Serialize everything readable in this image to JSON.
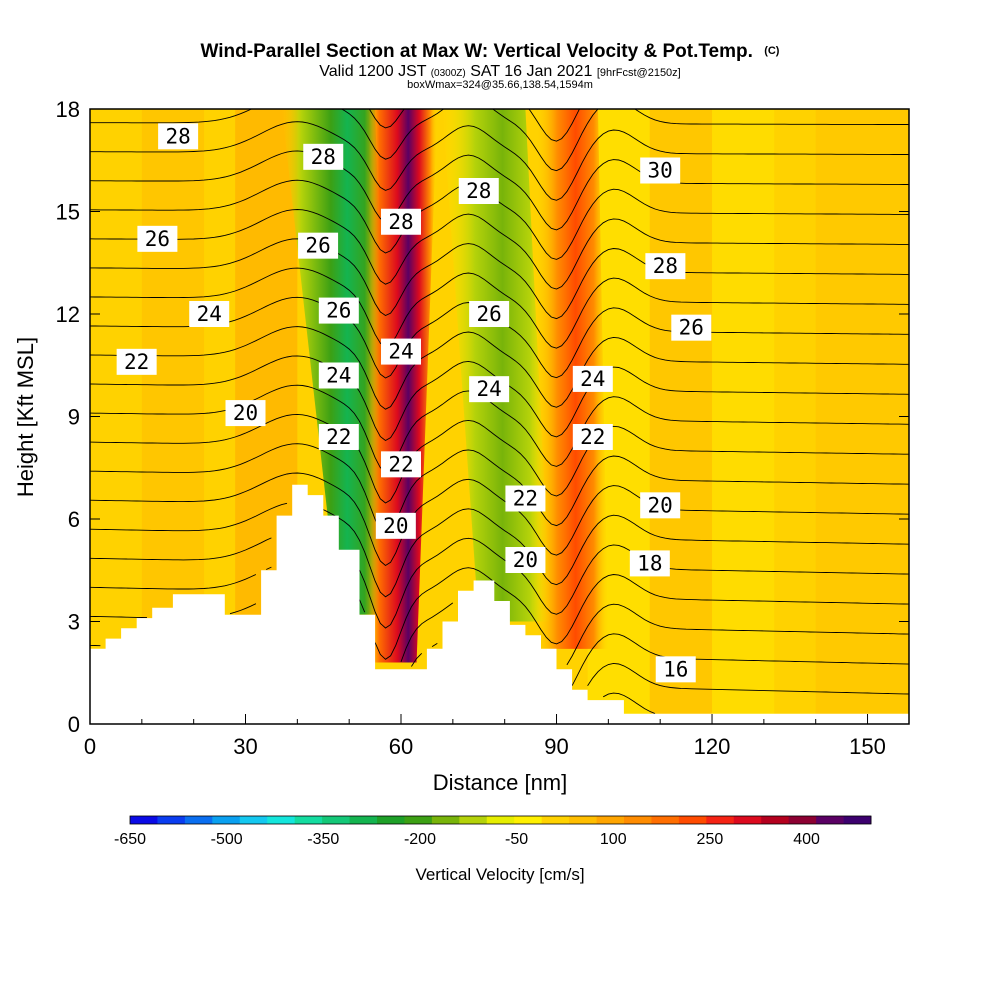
{
  "title": {
    "main": "Wind-Parallel Section at Max W: Vertical Velocity & Pot.Temp.",
    "copyright": "(C)",
    "valid_prefix": "Valid 1200 JST",
    "valid_utc": "(0300Z)",
    "valid_date": "SAT 16 Jan 2021",
    "forecast": "[9hrFcst@2150z]",
    "box": "boxWmax=324@35.66,138.54,1594m"
  },
  "chart_data": {
    "type": "heatmap",
    "xlabel": "Distance [nm]",
    "ylabel": "Height [Kft MSL]",
    "xlim": [
      0,
      158
    ],
    "ylim": [
      0,
      18
    ],
    "xticks": [
      "0",
      "30",
      "60",
      "90",
      "120",
      "150"
    ],
    "xtick_values": [
      0,
      30,
      60,
      90,
      120,
      150
    ],
    "yticks": [
      "0",
      "3",
      "6",
      "9",
      "12",
      "15",
      "18"
    ],
    "ytick_values": [
      0,
      3,
      6,
      9,
      12,
      15,
      18
    ],
    "fill_variable": "Vertical Velocity [cm/s]",
    "contour_variable": "Potential Temperature",
    "colorbar": {
      "label": "Vertical Velocity [cm/s]",
      "tick_labels": [
        "-650",
        "-500",
        "-350",
        "-200",
        "-50",
        "100",
        "250",
        "400"
      ],
      "min": -650,
      "max": 500,
      "step": 50,
      "colors": [
        "#0a0ae6",
        "#0a3cf0",
        "#0a6ef0",
        "#0aa0f0",
        "#14c8f0",
        "#14e6dc",
        "#14dca0",
        "#14c878",
        "#14b450",
        "#1ea028",
        "#3ca014",
        "#78b40a",
        "#b4d20a",
        "#e6ee00",
        "#fff000",
        "#ffd200",
        "#ffbe00",
        "#ffa500",
        "#ff8c00",
        "#ff6e00",
        "#ff4b00",
        "#f52314",
        "#dc0a1e",
        "#b4001e",
        "#8c0032",
        "#5a0064",
        "#3c006e"
      ]
    },
    "velocity_bands": [
      {
        "kind": "downdraft",
        "x": [
          40,
          54
        ],
        "min_cm_s": -230,
        "description_level": "strong"
      },
      {
        "kind": "updraft",
        "x": [
          55,
          66
        ],
        "max_cm_s": 400
      },
      {
        "kind": "downdraft",
        "x": [
          67,
          82
        ],
        "min_cm_s": -120
      },
      {
        "kind": "updraft",
        "x": [
          86,
          96
        ],
        "max_cm_s": 200
      }
    ],
    "terrain": [
      [
        0,
        2.2
      ],
      [
        3,
        2.2
      ],
      [
        3,
        2.5
      ],
      [
        6,
        2.5
      ],
      [
        6,
        2.8
      ],
      [
        9,
        2.8
      ],
      [
        9,
        3.1
      ],
      [
        12,
        3.1
      ],
      [
        12,
        3.4
      ],
      [
        16,
        3.4
      ],
      [
        16,
        3.8
      ],
      [
        26,
        3.8
      ],
      [
        26,
        3.2
      ],
      [
        33,
        3.2
      ],
      [
        33,
        4.5
      ],
      [
        36,
        4.5
      ],
      [
        36,
        6.1
      ],
      [
        39,
        6.1
      ],
      [
        39,
        7.0
      ],
      [
        42,
        7.0
      ],
      [
        42,
        6.7
      ],
      [
        45,
        6.7
      ],
      [
        45,
        6.1
      ],
      [
        48,
        6.1
      ],
      [
        48,
        5.1
      ],
      [
        52,
        5.1
      ],
      [
        52,
        3.2
      ],
      [
        55,
        3.2
      ],
      [
        55,
        1.6
      ],
      [
        65,
        1.6
      ],
      [
        65,
        2.2
      ],
      [
        68,
        2.2
      ],
      [
        68,
        3.0
      ],
      [
        71,
        3.0
      ],
      [
        71,
        3.9
      ],
      [
        74,
        3.9
      ],
      [
        74,
        4.2
      ],
      [
        78,
        4.2
      ],
      [
        78,
        3.6
      ],
      [
        81,
        3.6
      ],
      [
        81,
        2.9
      ],
      [
        84,
        2.9
      ],
      [
        84,
        2.6
      ],
      [
        87,
        2.6
      ],
      [
        87,
        2.2
      ],
      [
        90,
        2.2
      ],
      [
        90,
        1.6
      ],
      [
        93,
        1.6
      ],
      [
        93,
        1.0
      ],
      [
        96,
        1.0
      ],
      [
        96,
        0.7
      ],
      [
        103,
        0.7
      ],
      [
        103,
        0.3
      ],
      [
        158,
        0.3
      ]
    ],
    "contour_labels": [
      {
        "value": "28",
        "x": 17,
        "y": 17.2
      },
      {
        "value": "28",
        "x": 45,
        "y": 16.6
      },
      {
        "value": "28",
        "x": 60,
        "y": 14.7
      },
      {
        "value": "28",
        "x": 75,
        "y": 15.6
      },
      {
        "value": "30",
        "x": 110,
        "y": 16.2
      },
      {
        "value": "28",
        "x": 111,
        "y": 13.4
      },
      {
        "value": "26",
        "x": 13,
        "y": 14.2
      },
      {
        "value": "26",
        "x": 44,
        "y": 14.0
      },
      {
        "value": "26",
        "x": 48,
        "y": 12.1
      },
      {
        "value": "26",
        "x": 77,
        "y": 12.0
      },
      {
        "value": "26",
        "x": 116,
        "y": 11.6
      },
      {
        "value": "24",
        "x": 23,
        "y": 12.0
      },
      {
        "value": "24",
        "x": 48,
        "y": 10.2
      },
      {
        "value": "24",
        "x": 60,
        "y": 10.9
      },
      {
        "value": "24",
        "x": 77,
        "y": 9.8
      },
      {
        "value": "24",
        "x": 97,
        "y": 10.1
      },
      {
        "value": "22",
        "x": 9,
        "y": 10.6
      },
      {
        "value": "22",
        "x": 48,
        "y": 8.4
      },
      {
        "value": "22",
        "x": 60,
        "y": 7.6
      },
      {
        "value": "22",
        "x": 97,
        "y": 8.4
      },
      {
        "value": "22",
        "x": 84,
        "y": 6.6
      },
      {
        "value": "20",
        "x": 30,
        "y": 9.1
      },
      {
        "value": "20",
        "x": 59,
        "y": 5.8
      },
      {
        "value": "20",
        "x": 84,
        "y": 4.8
      },
      {
        "value": "20",
        "x": 110,
        "y": 6.4
      },
      {
        "value": "18",
        "x": 108,
        "y": 4.7
      },
      {
        "value": "16",
        "x": 113,
        "y": 1.6
      }
    ]
  }
}
